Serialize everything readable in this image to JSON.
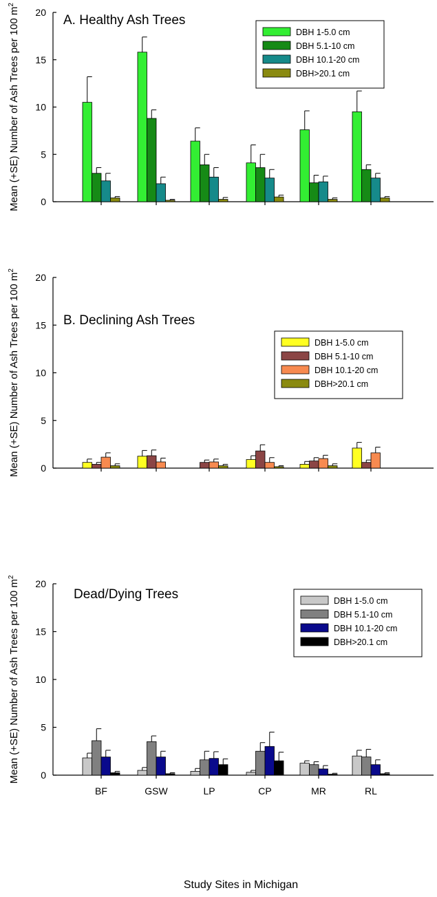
{
  "x_axis_label": "Study Sites in Michigan",
  "chart_data": [
    {
      "type": "bar",
      "title": "A. Healthy Ash Trees",
      "ylabel": "Mean (+SE) Number of Ash Trees per 100 m",
      "ylabel_superscript": "2",
      "ylim": [
        0,
        20
      ],
      "yticks": [
        "0",
        "5",
        "10",
        "15",
        "20"
      ],
      "categories": [
        "BF",
        "GSW",
        "LP",
        "CP",
        "MR",
        "RL"
      ],
      "show_categories": false,
      "legend_position": "top-right",
      "series": [
        {
          "name": "DBH 1-5.0 cm",
          "color": "#33ee33",
          "values": [
            10.5,
            15.8,
            6.4,
            4.1,
            7.6,
            9.5
          ],
          "se": [
            2.7,
            1.6,
            1.4,
            1.9,
            2.0,
            2.2
          ]
        },
        {
          "name": "DBH 5.1-10  cm",
          "color": "#168a16",
          "values": [
            3.0,
            8.8,
            3.9,
            3.6,
            2.0,
            3.4
          ],
          "se": [
            0.6,
            0.9,
            1.1,
            1.4,
            0.8,
            0.5
          ]
        },
        {
          "name": "DBH 10.1-20 cm",
          "color": "#168a8a",
          "values": [
            2.2,
            1.9,
            2.6,
            2.5,
            2.1,
            2.5
          ],
          "se": [
            0.8,
            0.7,
            1.0,
            0.9,
            0.6,
            0.5
          ]
        },
        {
          "name": "DBH>20.1 cm",
          "color": "#8a8a10",
          "values": [
            0.4,
            0.15,
            0.25,
            0.5,
            0.25,
            0.4
          ],
          "se": [
            0.15,
            0.1,
            0.2,
            0.2,
            0.15,
            0.15
          ]
        }
      ]
    },
    {
      "type": "bar",
      "title": "B. Declining Ash Trees",
      "ylabel": "Mean (+SE) Number of Ash Trees per 100 m",
      "ylabel_superscript": "2",
      "ylim": [
        0,
        20
      ],
      "yticks": [
        "0",
        "5",
        "10",
        "15",
        "20"
      ],
      "categories": [
        "BF",
        "GSW",
        "LP",
        "CP",
        "MR",
        "RL"
      ],
      "show_categories": false,
      "legend_position": "top-right",
      "series": [
        {
          "name": "DBH 1-5.0 cm",
          "color": "#ffff22",
          "values": [
            0.6,
            1.25,
            0.0,
            0.9,
            0.4,
            2.1
          ],
          "se": [
            0.35,
            0.6,
            0.0,
            0.4,
            0.3,
            0.6
          ]
        },
        {
          "name": "DBH 5.1-10  cm",
          "color": "#8b4545",
          "values": [
            0.4,
            1.3,
            0.6,
            1.8,
            0.75,
            0.6
          ],
          "se": [
            0.2,
            0.6,
            0.25,
            0.65,
            0.35,
            0.25
          ]
        },
        {
          "name": "DBH 10.1-20 cm",
          "color": "#f78a50",
          "values": [
            1.15,
            0.65,
            0.65,
            0.6,
            1.0,
            1.6
          ],
          "se": [
            0.45,
            0.4,
            0.3,
            0.5,
            0.35,
            0.6
          ]
        },
        {
          "name": "DBH>20.1 cm",
          "color": "#8a8a10",
          "values": [
            0.25,
            0.0,
            0.25,
            0.15,
            0.25,
            0.0
          ],
          "se": [
            0.2,
            0.0,
            0.15,
            0.1,
            0.2,
            0.0
          ]
        }
      ]
    },
    {
      "type": "bar",
      "title": "Dead/Dying Trees",
      "ylabel": "Mean (+SE) Number of Ash Trees per 100 m",
      "ylabel_superscript": "2",
      "ylim": [
        0,
        20
      ],
      "yticks": [
        "0",
        "5",
        "10",
        "15",
        "20"
      ],
      "categories": [
        "BF",
        "GSW",
        "LP",
        "CP",
        "MR",
        "RL"
      ],
      "show_categories": true,
      "legend_position": "top-right",
      "series": [
        {
          "name": "DBH 1-5.0 cm",
          "color": "#c8c8c8",
          "values": [
            1.8,
            0.5,
            0.4,
            0.3,
            1.25,
            2.0
          ],
          "se": [
            0.5,
            0.3,
            0.3,
            0.2,
            0.25,
            0.6
          ]
        },
        {
          "name": "DBH 5.1-10  cm",
          "color": "#808080",
          "values": [
            3.6,
            3.5,
            1.6,
            2.5,
            1.1,
            1.9
          ],
          "se": [
            1.25,
            0.6,
            0.9,
            0.9,
            0.3,
            0.8
          ]
        },
        {
          "name": "DBH 10.1-20 cm",
          "color": "#0a0a8c",
          "values": [
            1.9,
            1.9,
            1.75,
            3.0,
            0.65,
            1.1
          ],
          "se": [
            0.7,
            0.6,
            0.7,
            1.5,
            0.35,
            0.5
          ]
        },
        {
          "name": "DBH>20.1 cm",
          "color": "#000000",
          "values": [
            0.25,
            0.15,
            1.1,
            1.5,
            0.1,
            0.15
          ],
          "se": [
            0.15,
            0.1,
            0.6,
            0.9,
            0.1,
            0.1
          ]
        }
      ]
    }
  ]
}
